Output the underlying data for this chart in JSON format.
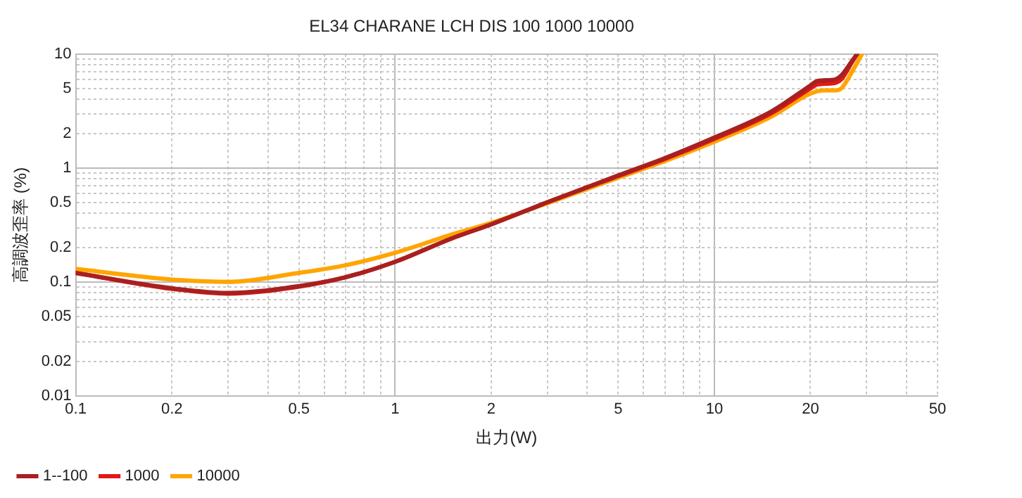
{
  "chart_data": {
    "type": "line",
    "title": "EL34 CHARANE LCH DIS 100 1000 10000",
    "xlabel": "出力(W)",
    "ylabel": "高調波歪率 (%)",
    "log": "xy",
    "grid": true,
    "legend": "bottom left",
    "marker": "none",
    "line_style": "solid",
    "xlim": [
      0.1,
      50
    ],
    "ylim": [
      0.01,
      10
    ],
    "xticks": [
      0.1,
      0.2,
      {
        "value": 0.3,
        "label": null
      },
      {
        "value": 0.4,
        "label": null
      },
      0.5,
      {
        "value": 0.6,
        "label": null
      },
      {
        "value": 0.7,
        "label": null
      },
      {
        "value": 0.8,
        "label": null
      },
      {
        "value": 0.9,
        "label": null
      },
      1,
      2,
      {
        "value": 3,
        "label": null
      },
      {
        "value": 4,
        "label": null
      },
      5,
      {
        "value": 6,
        "label": null
      },
      {
        "value": 7,
        "label": null
      },
      {
        "value": 8,
        "label": null
      },
      {
        "value": 9,
        "label": null
      },
      10,
      20,
      {
        "value": 30,
        "label": null
      },
      {
        "value": 40,
        "label": null
      },
      50
    ],
    "yticks": [
      0.01,
      0.02,
      {
        "value": 0.03,
        "label": null
      },
      {
        "value": 0.04,
        "label": null
      },
      0.05,
      {
        "value": 0.06,
        "label": null
      },
      {
        "value": 0.07,
        "label": null
      },
      {
        "value": 0.08,
        "label": null
      },
      {
        "value": 0.09,
        "label": null
      },
      0.1,
      0.2,
      {
        "value": 0.3,
        "label": null
      },
      {
        "value": 0.4,
        "label": null
      },
      0.5,
      {
        "value": 0.6,
        "label": null
      },
      {
        "value": 0.7,
        "label": null
      },
      {
        "value": 0.8,
        "label": null
      },
      {
        "value": 0.9,
        "label": null
      },
      1,
      2,
      {
        "value": 3,
        "label": null
      },
      {
        "value": 4,
        "label": null
      },
      5,
      {
        "value": 6,
        "label": null
      },
      {
        "value": 7,
        "label": null
      },
      {
        "value": 8,
        "label": null
      },
      {
        "value": 9,
        "label": null
      },
      10
    ],
    "series": [
      {
        "name": "1--100",
        "color": "#a82020",
        "x": [
          0.1,
          0.2,
          0.3,
          0.5,
          0.7,
          1,
          1.5,
          2,
          3,
          5,
          7,
          10,
          15,
          20,
          21,
          23,
          24,
          25,
          27,
          28
        ],
        "values": [
          0.12,
          0.088,
          0.08,
          0.092,
          0.11,
          0.15,
          0.24,
          0.32,
          0.5,
          0.86,
          1.22,
          1.85,
          3.1,
          5.3,
          5.8,
          5.9,
          6.0,
          6.5,
          8.7,
          10
        ]
      },
      {
        "name": "1000",
        "color": "#e01818",
        "x": [
          0.1,
          0.2,
          0.3,
          0.5,
          0.7,
          1,
          1.5,
          2,
          3,
          5,
          7,
          10,
          15,
          20,
          21,
          23,
          24,
          25,
          27,
          28
        ],
        "values": [
          0.12,
          0.087,
          0.079,
          0.091,
          0.11,
          0.15,
          0.24,
          0.32,
          0.5,
          0.85,
          1.2,
          1.8,
          3.0,
          5.0,
          5.4,
          5.5,
          5.6,
          6.0,
          8.5,
          10
        ]
      },
      {
        "name": "10000",
        "color": "#ffa500",
        "x": [
          0.1,
          0.2,
          0.3,
          0.5,
          0.7,
          1,
          1.5,
          2,
          3,
          5,
          7,
          10,
          15,
          20,
          22,
          24,
          25,
          27,
          29
        ],
        "values": [
          0.13,
          0.105,
          0.1,
          0.12,
          0.14,
          0.18,
          0.26,
          0.33,
          0.49,
          0.82,
          1.15,
          1.7,
          2.8,
          4.5,
          4.8,
          4.8,
          5.0,
          7.0,
          10
        ]
      }
    ]
  }
}
